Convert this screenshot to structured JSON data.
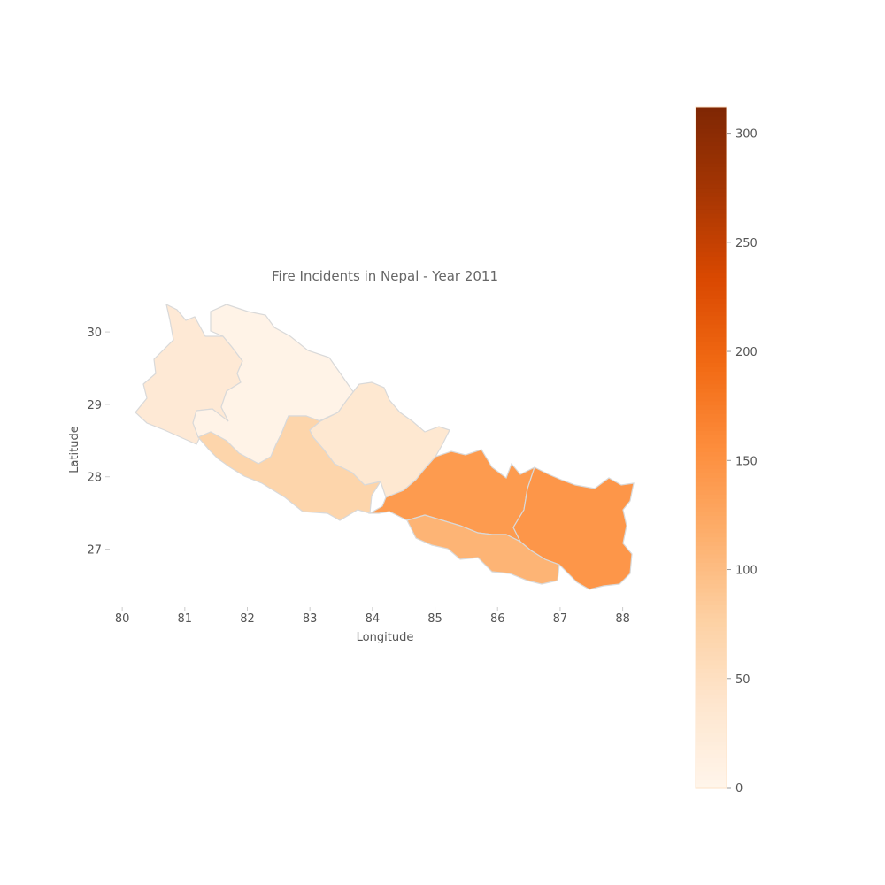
{
  "chart_data": {
    "type": "choropleth",
    "title": "Fire Incidents in Nepal - Year 2011",
    "xlabel": "Longitude",
    "ylabel": "Latitude",
    "xlim": [
      79.8,
      88.6
    ],
    "ylim": [
      26.2,
      30.6
    ],
    "x_ticks": [
      "80",
      "81",
      "82",
      "83",
      "84",
      "85",
      "86",
      "87",
      "88"
    ],
    "y_ticks": [
      "27",
      "28",
      "29",
      "30"
    ],
    "grid": false,
    "colormap": "Oranges",
    "colorbar": {
      "min": 0,
      "max": 312,
      "ticks": [
        "0",
        "50",
        "100",
        "150",
        "200",
        "250",
        "300"
      ],
      "colors": [
        "#fff5eb",
        "#fee6ce",
        "#fdd0a2",
        "#fdae6b",
        "#fd8d3c",
        "#f16913",
        "#d94801",
        "#a63603",
        "#7f2704"
      ]
    },
    "regions": [
      {
        "id": "far-west",
        "value": 30
      },
      {
        "id": "mid-west-mountain",
        "value": 5
      },
      {
        "id": "mid-west-hills",
        "value": 70
      },
      {
        "id": "western-north",
        "value": 35
      },
      {
        "id": "central",
        "value": 140
      },
      {
        "id": "central-south",
        "value": 110
      },
      {
        "id": "eastern",
        "value": 145
      }
    ]
  }
}
